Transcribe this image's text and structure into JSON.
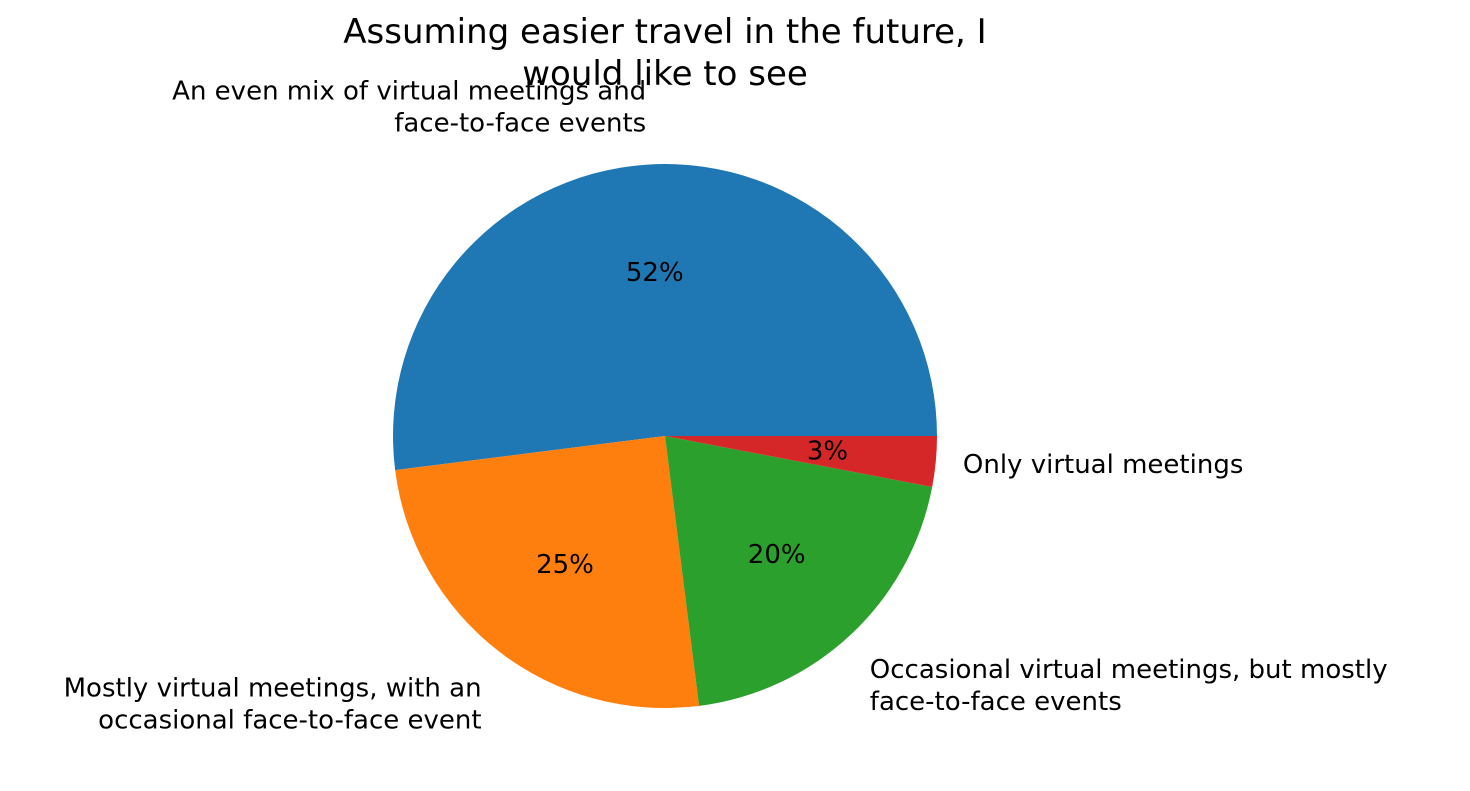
{
  "chart_data": {
    "type": "pie",
    "title_lines": [
      "Assuming easier travel in the future, I",
      "would like to see"
    ],
    "slices": [
      {
        "label_lines": [
          "An even mix of virtual meetings and",
          "face-to-face events"
        ],
        "value": 52,
        "pct_label": "52%",
        "color": "#1f77b4"
      },
      {
        "label_lines": [
          "Mostly virtual meetings, with an",
          "occasional face-to-face event"
        ],
        "value": 25,
        "pct_label": "25%",
        "color": "#ff7f0e"
      },
      {
        "label_lines": [
          "Occasional virtual meetings, but mostly",
          "face-to-face events"
        ],
        "value": 20,
        "pct_label": "20%",
        "color": "#2ca02c"
      },
      {
        "label_lines": [
          "Only virtual meetings"
        ],
        "value": 3,
        "pct_label": "3%",
        "color": "#d62728"
      }
    ],
    "start_angle_deg": 0,
    "direction": "counterclockwise"
  }
}
